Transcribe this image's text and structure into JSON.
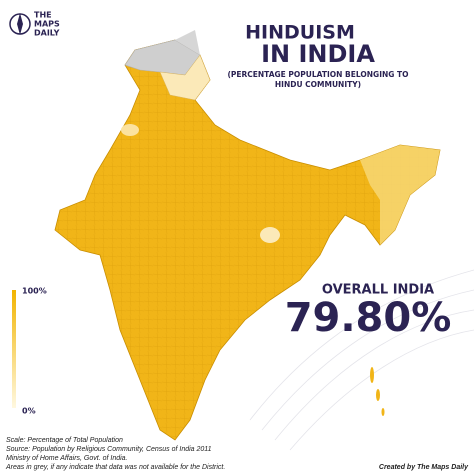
{
  "header": {
    "brand": [
      "THE",
      "MAPS",
      "DAILY"
    ],
    "title": [
      "HINDUISM",
      "IN INDIA"
    ],
    "subtitle": [
      "(PERCENTAGE POPULATION BELONGING TO",
      "HINDU COMMUNITY)"
    ]
  },
  "overall": {
    "label": "OVERALL INDIA",
    "value": "79.80%"
  },
  "legend": {
    "top": "100%",
    "bottom": "0%"
  },
  "notes": [
    "Scale: Percentage of Total Population",
    "Source: Population by Religious Community, Census of India 2011",
    "Ministry of Home Affairs, Govt. of India.",
    "Areas in grey, if any indicate that data was not available for the District."
  ],
  "credit": "Created by The Maps Daily"
}
